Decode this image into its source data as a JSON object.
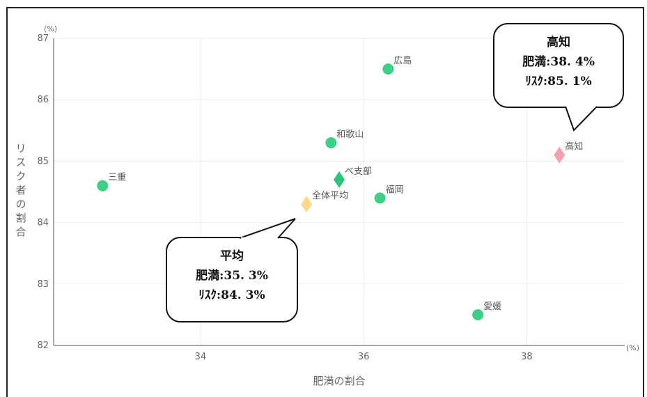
{
  "chart_data": {
    "type": "scatter",
    "xlabel": "肥満の割合",
    "ylabel": "リスク者の割合",
    "x_unit": "(%)",
    "y_unit": "(%)",
    "xlim": [
      32.2,
      39.2
    ],
    "ylim": [
      82,
      87
    ],
    "xticks": [
      34,
      36,
      38
    ],
    "yticks": [
      82,
      83,
      84,
      85,
      86,
      87
    ],
    "grid": true,
    "points": [
      {
        "label": "広島",
        "x": 36.3,
        "y": 86.5,
        "shape": "circle",
        "color": "#3ecf87"
      },
      {
        "label": "和歌山",
        "x": 35.6,
        "y": 85.3,
        "shape": "circle",
        "color": "#3ecf87"
      },
      {
        "label": "三重",
        "x": 32.8,
        "y": 84.6,
        "shape": "circle",
        "color": "#3ecf87"
      },
      {
        "label": "べ支部",
        "x": 35.7,
        "y": 84.7,
        "shape": "diamond",
        "color": "#2ec27e"
      },
      {
        "label": "福岡",
        "x": 36.2,
        "y": 84.4,
        "shape": "circle",
        "color": "#3ecf87"
      },
      {
        "label": "全体平均",
        "x": 35.3,
        "y": 84.3,
        "shape": "diamond",
        "color": "#ffd98a"
      },
      {
        "label": "高知",
        "x": 38.4,
        "y": 85.1,
        "shape": "diamond",
        "color": "#f4a0ad"
      },
      {
        "label": "愛媛",
        "x": 37.4,
        "y": 82.5,
        "shape": "circle",
        "color": "#3ecf87"
      }
    ],
    "callouts": [
      {
        "lines": [
          "高知",
          "肥満:38. 4%",
          "ﾘｽｸ:85. 1%"
        ]
      },
      {
        "lines": [
          "平均",
          "肥満:35. 3%",
          "ﾘｽｸ:84. 3%"
        ]
      }
    ]
  }
}
